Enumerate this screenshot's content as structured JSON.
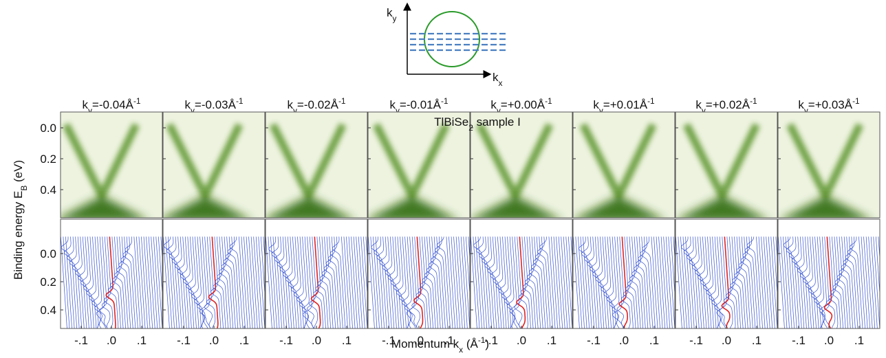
{
  "diagram": {
    "axis_y": {
      "text": "k",
      "sub": "y"
    },
    "axis_x": {
      "text": "k",
      "sub": "x"
    }
  },
  "panels": [
    {
      "title": {
        "text": "k",
        "sub": "y",
        "rest": "=-0.04Å",
        "sup": "-1"
      }
    },
    {
      "title": {
        "text": "k",
        "sub": "y",
        "rest": "=-0.03Å",
        "sup": "-1"
      }
    },
    {
      "title": {
        "text": "k",
        "sub": "y",
        "rest": "=-0.02Å",
        "sup": "-1"
      }
    },
    {
      "title": {
        "text": "k",
        "sub": "y",
        "rest": "=-0.01Å",
        "sup": "-1"
      }
    },
    {
      "title": {
        "text": "k",
        "sub": "y",
        "rest": "=+0.00Å",
        "sup": "-1"
      }
    },
    {
      "title": {
        "text": "k",
        "sub": "y",
        "rest": "=+0.01Å",
        "sup": "-1"
      }
    },
    {
      "title": {
        "text": "k",
        "sub": "y",
        "rest": "=+0.02Å",
        "sup": "-1"
      }
    },
    {
      "title": {
        "text": "k",
        "sub": "y",
        "rest": "=+0.03Å",
        "sup": "-1"
      }
    }
  ],
  "annotation": {
    "text": "TlBiSe",
    "sub": "2",
    "rest": " sample I"
  },
  "y_axis": {
    "label": {
      "text": "Binding energy E",
      "sub": "B",
      "rest": " (eV)"
    },
    "ticks": [
      {
        "value": 0,
        "label": "0.0"
      },
      {
        "value": 0.2,
        "label": "0.2"
      },
      {
        "value": 0.4,
        "label": "0.4"
      }
    ]
  },
  "x_axis": {
    "label": {
      "text": "Momentum k",
      "sub": "x",
      "rest": " (Å",
      "sup": "-1",
      "end": ")"
    },
    "ticks": [
      {
        "value": -0.1,
        "label": "-.1"
      },
      {
        "value": 0,
        "label": ".0"
      },
      {
        "value": 0.1,
        "label": ".1"
      }
    ]
  }
}
